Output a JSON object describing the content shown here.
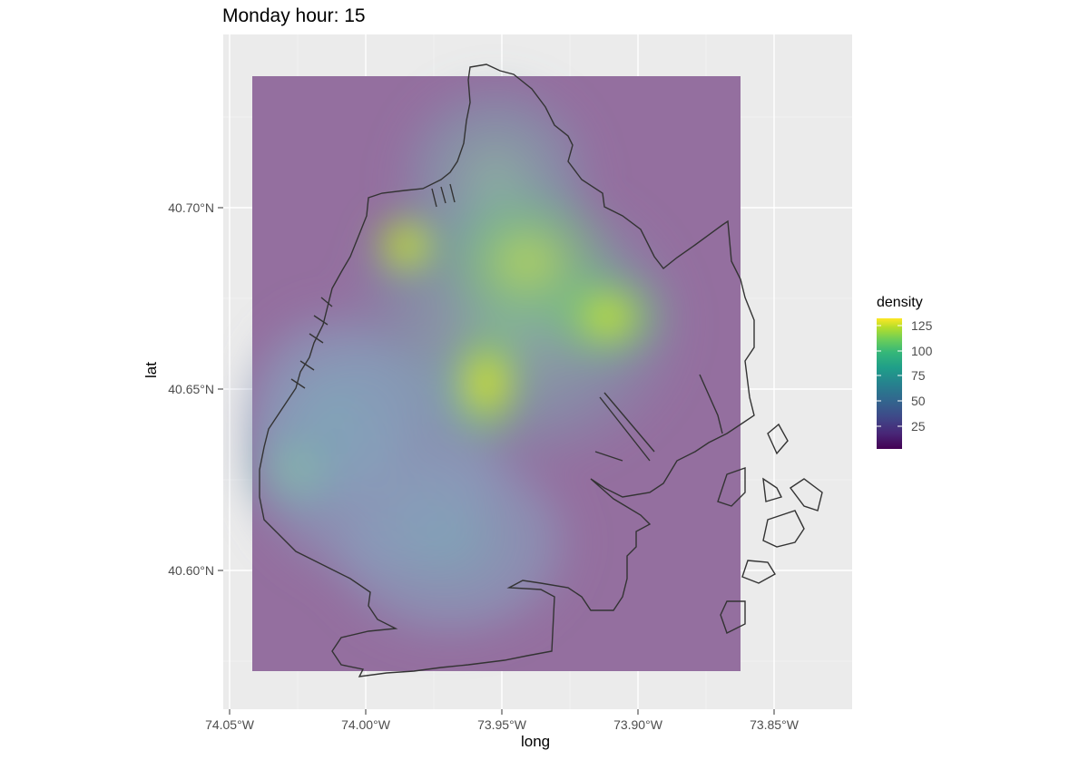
{
  "title": "Monday hour: 15",
  "axes": {
    "x_label": "long",
    "y_label": "lat",
    "x_ticks": [
      "74.05°W",
      "74.00°W",
      "73.95°W",
      "73.90°W",
      "73.85°W"
    ],
    "y_ticks": [
      "40.70°N",
      "40.65°N",
      "40.60°N"
    ]
  },
  "legend": {
    "title": "density",
    "labels": [
      "125",
      "100",
      "75",
      "50",
      "25"
    ],
    "colormap": [
      "#440154",
      "#482777",
      "#3e4a89",
      "#31688e",
      "#26828e",
      "#1f9e89",
      "#35b779",
      "#6ece58",
      "#b5de2b",
      "#fde725"
    ]
  },
  "colors": {
    "panel_background": "#ebebeb",
    "outline": "#333333",
    "low_density_tint": "#8e6aa0"
  },
  "density_hotspots": [
    {
      "name": "hotspot-northwest",
      "long": -73.986,
      "lat": 40.69,
      "density": 130
    },
    {
      "name": "hotspot-center-east",
      "long": -73.912,
      "lat": 40.67,
      "density": 115
    },
    {
      "name": "hotspot-center",
      "long": -73.935,
      "lat": 40.683,
      "density": 105
    },
    {
      "name": "hotspot-south-center",
      "long": -73.955,
      "lat": 40.652,
      "density": 115
    }
  ]
}
